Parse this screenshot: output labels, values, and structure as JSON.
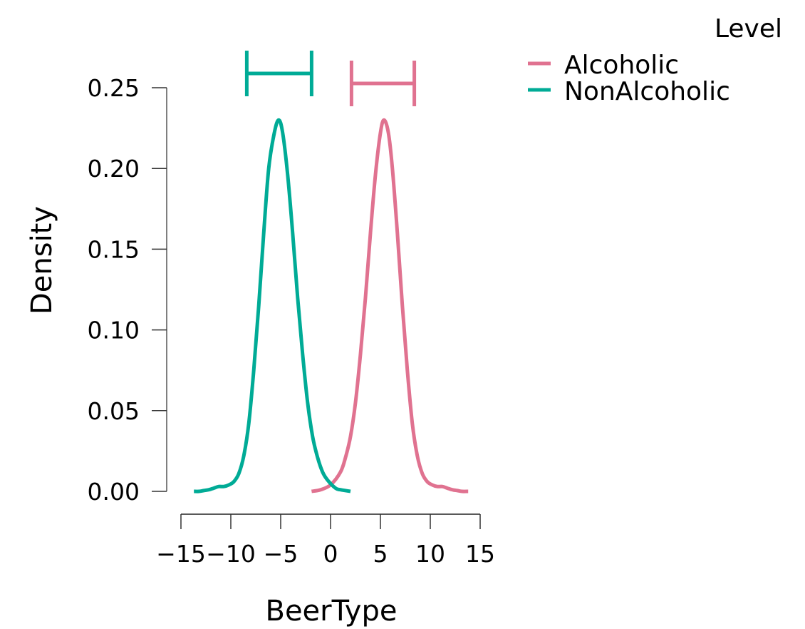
{
  "chart_data": {
    "type": "line",
    "subtype": "density",
    "title": "",
    "xlabel": "BeerType",
    "ylabel": "Density",
    "xlim": [
      -15,
      15
    ],
    "ylim": [
      0,
      0.25
    ],
    "x_ticks": [
      -15,
      -10,
      -5,
      0,
      5,
      10,
      15
    ],
    "x_tick_labels": [
      "−15",
      "−10",
      "−5",
      "0",
      "5",
      "10",
      "15"
    ],
    "y_ticks": [
      0,
      0.05,
      0.1,
      0.15,
      0.2,
      0.25
    ],
    "y_tick_labels": [
      "0.00",
      "0.05",
      "0.10",
      "0.15",
      "0.20",
      "0.25"
    ],
    "grid": false,
    "legend": {
      "title": "Level",
      "position": "top-right"
    },
    "series": [
      {
        "name": "Alcoholic",
        "color": "#e07290",
        "x": [
          -1.9,
          -1.0,
          0.0,
          1.0,
          1.5,
          2.0,
          2.5,
          3.0,
          3.5,
          4.0,
          4.5,
          5.0,
          5.36,
          5.8,
          6.2,
          6.7,
          7.2,
          7.7,
          8.2,
          8.7,
          9.2,
          9.7,
          10.2,
          10.7,
          11.2,
          11.7,
          12.2,
          12.7,
          13.2,
          13.8
        ],
        "y": [
          0.0,
          0.001,
          0.004,
          0.012,
          0.021,
          0.034,
          0.055,
          0.085,
          0.12,
          0.16,
          0.196,
          0.222,
          0.23,
          0.222,
          0.2,
          0.16,
          0.115,
          0.075,
          0.042,
          0.022,
          0.011,
          0.006,
          0.004,
          0.003,
          0.003,
          0.002,
          0.001,
          0.0005,
          0.0,
          0.0
        ]
      },
      {
        "name": "NonAlcoholic",
        "color": "#00ab96",
        "x": [
          -13.7,
          -13.2,
          -12.7,
          -12.2,
          -11.7,
          -11.2,
          -10.7,
          -10.2,
          -9.7,
          -9.2,
          -8.7,
          -8.2,
          -7.7,
          -7.2,
          -6.7,
          -6.2,
          -5.64,
          -5.2,
          -4.8,
          -4.3,
          -3.8,
          -3.3,
          -2.8,
          -2.3,
          -1.8,
          -1.3,
          -0.8,
          -0.3,
          0.5,
          1.0,
          2.0
        ],
        "y": [
          0.0,
          0.0,
          0.0005,
          0.001,
          0.002,
          0.003,
          0.003,
          0.004,
          0.006,
          0.011,
          0.022,
          0.042,
          0.075,
          0.115,
          0.16,
          0.2,
          0.222,
          0.23,
          0.222,
          0.196,
          0.16,
          0.12,
          0.085,
          0.055,
          0.034,
          0.021,
          0.012,
          0.007,
          0.002,
          0.001,
          0.0
        ]
      }
    ],
    "error_bars": [
      {
        "series": "NonAlcoholic",
        "lower": -8.4,
        "upper": -1.9,
        "y_pixel_level": "top"
      },
      {
        "series": "Alcoholic",
        "lower": 2.1,
        "upper": 8.4,
        "y_pixel_level": "below"
      }
    ]
  },
  "legend": {
    "title": "Level",
    "items": [
      {
        "label": "Alcoholic",
        "color": "#e07290"
      },
      {
        "label": "NonAlcoholic",
        "color": "#00ab96"
      }
    ]
  },
  "axes": {
    "xlabel": "BeerType",
    "ylabel": "Density"
  }
}
